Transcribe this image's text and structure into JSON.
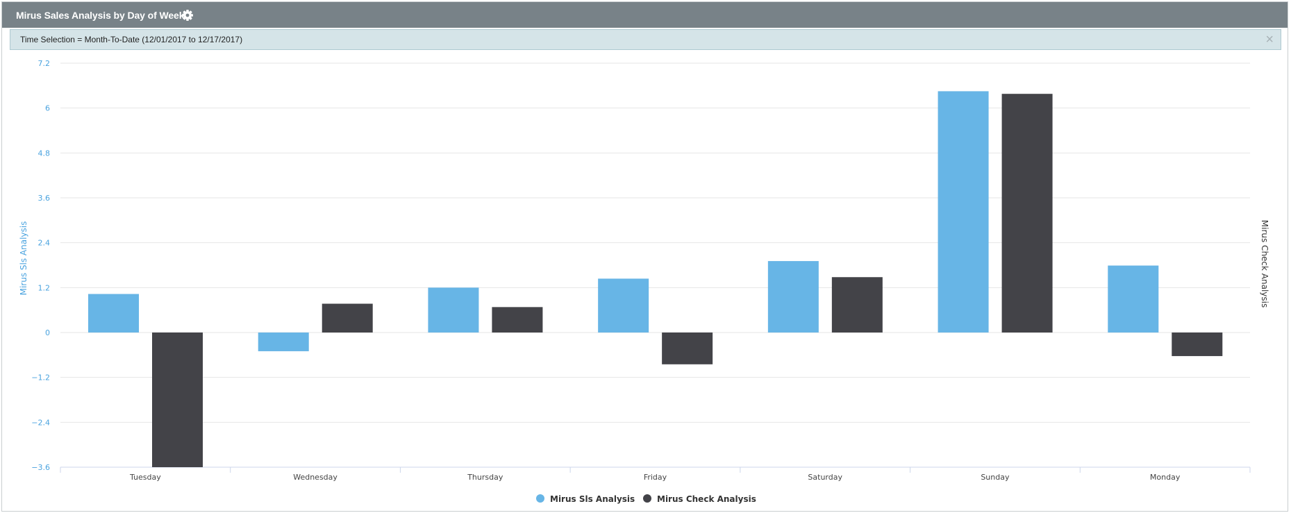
{
  "header": {
    "title": "Mirus Sales Analysis by Day of Week",
    "settings_icon": "gear-icon"
  },
  "filter": {
    "text": "Time Selection = Month-To-Date (12/01/2017 to 12/17/2017)",
    "close_icon": "close-icon",
    "close_glyph": "×"
  },
  "colors": {
    "header_bg": "#788288",
    "filter_bg": "#d5e4e8",
    "series1": "#67b5e6",
    "series2": "#434348",
    "left_axis": "#4aa3df",
    "right_axis": "#333333"
  },
  "chart_data": {
    "type": "bar",
    "categories": [
      "Tuesday",
      "Wednesday",
      "Thursday",
      "Friday",
      "Saturday",
      "Sunday",
      "Monday"
    ],
    "series": [
      {
        "name": "Mirus Sls Analysis",
        "values": [
          1.03,
          -0.5,
          1.2,
          1.44,
          1.91,
          6.45,
          1.79
        ]
      },
      {
        "name": "Mirus Check Analysis",
        "values": [
          -3.6,
          0.77,
          0.68,
          -0.85,
          1.48,
          6.38,
          -0.63
        ]
      }
    ],
    "ylabel": "Mirus Sls Analysis",
    "ylabel_right": "Mirus Check Analysis",
    "ylim": [
      -3.6,
      7.2
    ],
    "yticks": [
      "7.2",
      "6",
      "4.8",
      "3.6",
      "2.4",
      "1.2",
      "0",
      "-1.2",
      "-2.4",
      "-3.6"
    ],
    "grid": true,
    "legend": "bottom-center"
  }
}
